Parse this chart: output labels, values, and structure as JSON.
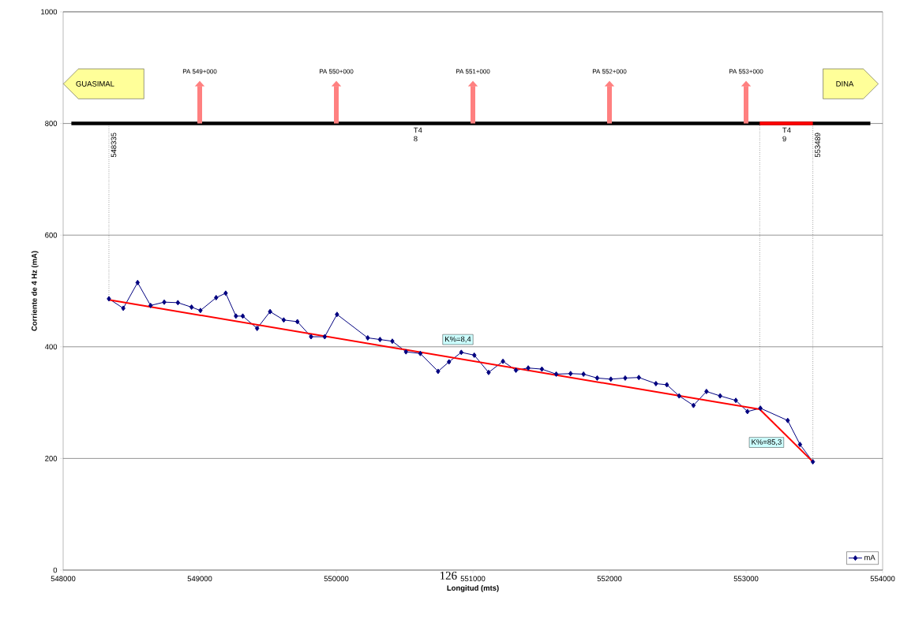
{
  "chart_data": {
    "type": "line",
    "xlabel": "Longitud (mts)",
    "ylabel": "Corriente de 4 Hz (mA)",
    "xlim": [
      548000,
      554000
    ],
    "xticks": [
      548000,
      549000,
      550000,
      551000,
      552000,
      553000,
      554000
    ],
    "ylim": [
      0,
      1000
    ],
    "yticks": [
      0,
      200,
      400,
      600,
      800,
      1000
    ],
    "grid": "y",
    "legend": "bottom right",
    "series": [
      {
        "name": "mA",
        "color": "#000080",
        "marker": "diamond",
        "x": [
          548335,
          548440,
          548545,
          548640,
          548740,
          548840,
          548940,
          549005,
          549120,
          549190,
          549265,
          549315,
          549420,
          549515,
          549615,
          549715,
          549815,
          549915,
          550005,
          550230,
          550320,
          550410,
          550510,
          550615,
          550745,
          550825,
          550915,
          551010,
          551115,
          551220,
          551315,
          551405,
          551505,
          551610,
          551715,
          551810,
          551910,
          552010,
          552115,
          552215,
          552340,
          552420,
          552510,
          552615,
          552710,
          552810,
          552925,
          553010,
          553105,
          553305,
          553395,
          553489
        ],
        "values": [
          486,
          469,
          515,
          474,
          480,
          479,
          471,
          465,
          488,
          496,
          455,
          455,
          433,
          463,
          448,
          445,
          418,
          418,
          458,
          416,
          413,
          410,
          391,
          388,
          356,
          373,
          390,
          385,
          354,
          374,
          358,
          362,
          360,
          351,
          352,
          351,
          344,
          342,
          344,
          345,
          334,
          332,
          312,
          295,
          320,
          312,
          304,
          284,
          290,
          268,
          225,
          194
        ]
      },
      {
        "color": "#ff0000",
        "x": [
          548335,
          553100
        ],
        "values": [
          484,
          288
        ]
      },
      {
        "color": "#ff0000",
        "x": [
          553100,
          553489
        ],
        "values": [
          288,
          194
        ]
      },
      {
        "color": "#000000",
        "x": [
          548060,
          553910
        ],
        "values": [
          800,
          800
        ]
      },
      {
        "color": "#ff0000",
        "x": [
          553100,
          553489
        ],
        "values": [
          800,
          800
        ]
      }
    ],
    "ref_lines": [
      {
        "axis": "x",
        "value": 548335,
        "label": "548335",
        "color": "#000000",
        "line_style": "dotted"
      },
      {
        "axis": "x",
        "value": 553100,
        "label": null,
        "color": "#000000",
        "line_style": "dotted"
      },
      {
        "axis": "x",
        "value": 553489,
        "label": "553489",
        "color": "#000000",
        "line_style": "dotted"
      }
    ],
    "annotations": [
      "GUASIMAL",
      "DINA",
      "126",
      "PA 549+000",
      "PA 550+000",
      "PA 551+000",
      "PA 552+000",
      "PA 553+000",
      {
        "text": "T4 8",
        "x": 550600,
        "y": 800
      },
      {
        "text": "T4 9",
        "x": 553300,
        "y": 800
      },
      {
        "text": "K%=8,4",
        "x": 550890,
        "y": 413
      },
      {
        "text": "K%=85,3",
        "x": 553300,
        "y": 240
      }
    ]
  }
}
